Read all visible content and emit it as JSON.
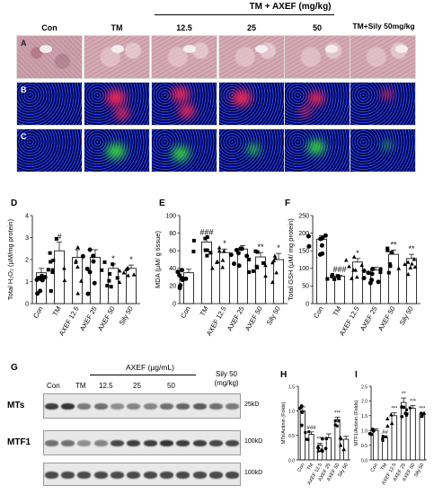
{
  "header": {
    "group_label": "TM + AXEF (mg/kg)",
    "columns": [
      "Con",
      "TM",
      "12.5",
      "25",
      "50",
      "TM+Sily 50mg/kg"
    ]
  },
  "rows": [
    "A",
    "B",
    "C"
  ],
  "panels": {
    "D": {
      "letter": "D",
      "ylabel": "Total H₂O₂ (µM/mg protein)",
      "ticks": [
        "0",
        "1",
        "2",
        "3",
        "4"
      ],
      "ylim": [
        0,
        4
      ]
    },
    "E": {
      "letter": "E",
      "ylabel": "MDA (µM/ g tissue)",
      "ticks": [
        "0",
        "20",
        "40",
        "60",
        "80",
        "100"
      ],
      "ylim": [
        0,
        100
      ]
    },
    "F": {
      "letter": "F",
      "ylabel": "Total GSH (µM/ mg protein)",
      "ticks": [
        "0",
        "50",
        "100",
        "150",
        "200",
        "250"
      ],
      "ylim": [
        0,
        250
      ]
    },
    "H": {
      "letter": "H",
      "ylabel": "MTs/Actinin (Folds)",
      "ticks": [
        "0.0",
        "0.5",
        "1.0",
        "1.5"
      ],
      "ylim": [
        0,
        1.5
      ]
    },
    "I": {
      "letter": "I",
      "ylabel": "MTF1/Actinin (Folds)",
      "ticks": [
        "0.0",
        "0.5",
        "1.0",
        "1.5",
        "2.0",
        "2.5"
      ],
      "ylim": [
        0,
        2.5
      ]
    }
  },
  "xcats": [
    "Con",
    "TM",
    "AXEF 12.5",
    "AXEF 25",
    "AXEF 50",
    "Sily 50"
  ],
  "chart_data": [
    {
      "type": "bar",
      "panel": "D",
      "categories": [
        "Con",
        "TM",
        "AXEF 12.5",
        "AXEF 25",
        "AXEF 50",
        "Sily 50"
      ],
      "values": [
        1.4,
        2.4,
        2.1,
        2.1,
        1.6,
        1.6
      ],
      "errors": [
        0.2,
        0.4,
        0.35,
        0.35,
        0.2,
        0.15
      ],
      "sig": [
        "",
        "#",
        "",
        "",
        "*",
        "*"
      ],
      "ylabel": "Total H₂O₂ (µM/mg protein)",
      "ylim": [
        0,
        4
      ]
    },
    {
      "type": "bar",
      "panel": "E",
      "categories": [
        "Con",
        "TM",
        "AXEF 12.5",
        "AXEF 25",
        "AXEF 50",
        "Sily 50"
      ],
      "values": [
        35,
        70,
        58,
        62,
        53,
        50
      ],
      "errors": [
        4,
        5,
        4,
        4,
        5,
        7
      ],
      "sig": [
        "",
        "###",
        "*",
        "",
        "**",
        "*"
      ],
      "ylabel": "MDA (µM/ g tissue)",
      "ylim": [
        0,
        100
      ]
    },
    {
      "type": "bar",
      "panel": "F",
      "categories": [
        "Con",
        "TM",
        "AXEF 12.5",
        "AXEF 25",
        "AXEF 50",
        "Sily 50"
      ],
      "values": [
        183,
        78,
        118,
        95,
        140,
        128
      ],
      "errors": [
        10,
        3,
        10,
        8,
        12,
        12
      ],
      "sig": [
        "",
        "###",
        "*",
        "",
        "**",
        "**"
      ],
      "ylabel": "Total GSH (µM/ mg protein)",
      "ylim": [
        0,
        250
      ]
    },
    {
      "type": "bar",
      "panel": "H",
      "categories": [
        "Con",
        "TM",
        "AXEF 12.5",
        "AXEF 25",
        "AXEF 50",
        "Sily 50"
      ],
      "values": [
        1.0,
        0.52,
        0.3,
        0.45,
        0.82,
        0.42
      ],
      "errors": [
        0.08,
        0.05,
        0.04,
        0.08,
        0.05,
        0.06
      ],
      "sig": [
        "",
        "###",
        "***",
        "",
        "***",
        ""
      ],
      "ylabel": "MTs/Actinin (Folds)",
      "ylim": [
        0,
        1.5
      ]
    },
    {
      "type": "bar",
      "panel": "I",
      "categories": [
        "Con",
        "TM",
        "AXEF 12.5",
        "AXEF 25",
        "AXEF 50",
        "Sily 50"
      ],
      "values": [
        1.0,
        0.75,
        1.5,
        1.95,
        1.75,
        1.55
      ],
      "errors": [
        0.05,
        0.04,
        0.1,
        0.15,
        0.1,
        0.05
      ],
      "sig": [
        "",
        "##",
        "***",
        "**",
        "***",
        "***"
      ],
      "ylabel": "MTF1/Actinin (Folds)",
      "ylim": [
        0,
        2.5
      ]
    }
  ],
  "blot": {
    "letter": "G",
    "lanes_labels": [
      "Con",
      "TM",
      "12.5",
      "25",
      "50"
    ],
    "group_label": "AXEF (µg/mL)",
    "sily_label": "Sily 50 (mg/kg)",
    "rows": [
      {
        "label": "MTs",
        "kd": "25kD",
        "intensity": [
          0.85,
          0.9,
          0.55,
          0.6,
          0.45,
          0.5,
          0.5,
          0.6,
          0.65,
          0.7,
          0.6,
          0.55
        ]
      },
      {
        "label": "MTF1",
        "kd": "100kD",
        "intensity": [
          0.6,
          0.6,
          0.45,
          0.5,
          0.8,
          0.85,
          0.85,
          0.9,
          0.85,
          0.85,
          0.8,
          0.8
        ]
      },
      {
        "label": "",
        "kd": "100kD",
        "intensity": [
          0.8,
          0.8,
          0.8,
          0.8,
          0.8,
          0.8,
          0.8,
          0.8,
          0.8,
          0.8,
          0.8,
          0.8
        ]
      }
    ]
  },
  "colors": {
    "bar_fill": "#ffffff",
    "bar_stroke": "#000000",
    "point": "#000000"
  }
}
